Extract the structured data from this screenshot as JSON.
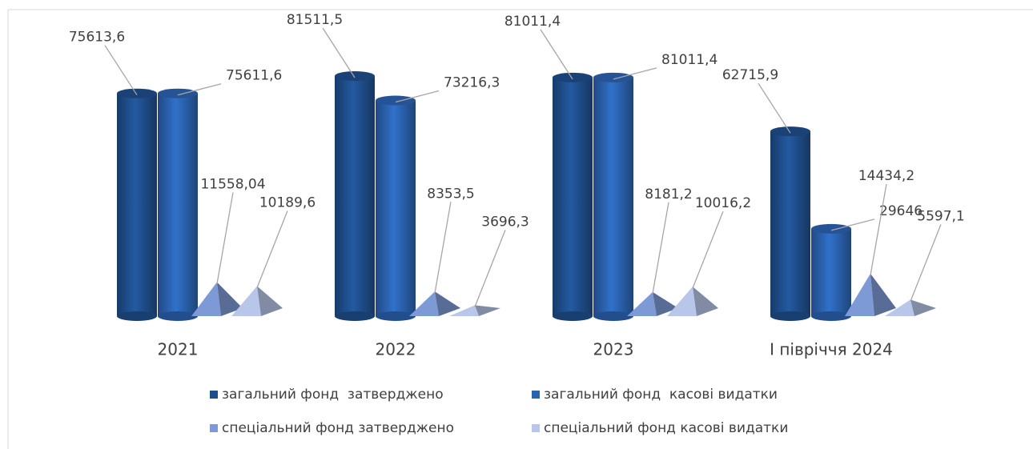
{
  "chart_data": {
    "type": "bar3d",
    "categories": [
      "2021",
      "2022",
      "2023",
      "I півріччя 2024"
    ],
    "series": [
      {
        "name": "загальний фонд  затверджено",
        "color": "#1f4e8c",
        "shape": "cylinder",
        "values": [
          75613.6,
          81511.5,
          81011.4,
          62715.9
        ],
        "value_labels": [
          "75613,6",
          "81511,5",
          "81011,4",
          "62715,9"
        ]
      },
      {
        "name": "загальний фонд  касові видатки",
        "color": "#2b62b0",
        "shape": "cylinder",
        "values": [
          75611.6,
          73216.3,
          81011.4,
          29646
        ],
        "value_labels": [
          "75611,6",
          "73216,3",
          "81011,4",
          "29646"
        ]
      },
      {
        "name": "спеціальний фонд затверджено",
        "color": "#7e9ad6",
        "shape": "pyramid",
        "values": [
          11558.04,
          8353.5,
          8181.2,
          14434.2
        ],
        "value_labels": [
          "11558,04",
          "8353,5",
          "8181,2",
          "14434,2"
        ]
      },
      {
        "name": "спеціальний фонд касові видатки",
        "color": "#b8c6ea",
        "shape": "pyramid",
        "values": [
          10189.6,
          3696.3,
          10016.2,
          5597.1
        ],
        "value_labels": [
          "10189,6",
          "3696,3",
          "10016,2",
          "5597,1"
        ]
      }
    ]
  }
}
